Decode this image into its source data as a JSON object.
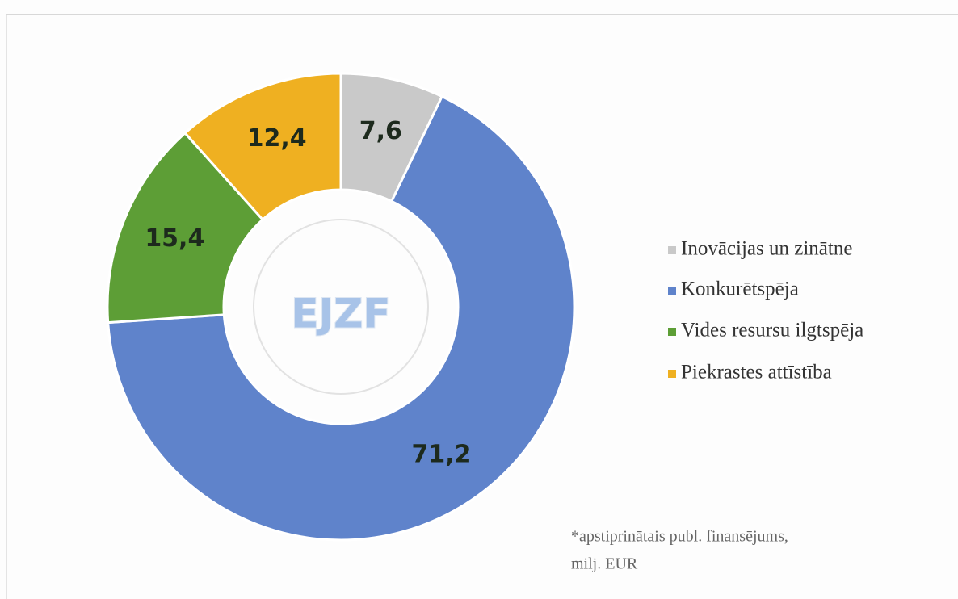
{
  "chart_data": {
    "type": "donut",
    "center_label": "EJZF",
    "categories": [
      "Inovācijas un zinātne",
      "Konkurētspēja",
      "Vides resursu ilgtspēja",
      "Piekrastes attīstība"
    ],
    "values": [
      7.6,
      71.2,
      15.4,
      12.4
    ],
    "value_labels": [
      "7,6",
      "71,2",
      "15,4",
      "12,4"
    ],
    "colors": [
      "#c9c9c9",
      "#5f83cb",
      "#5d9e36",
      "#efb021"
    ],
    "legend": "right",
    "note": [
      "*apstiprinātais publ. finansējums,",
      "milj. EUR"
    ]
  }
}
